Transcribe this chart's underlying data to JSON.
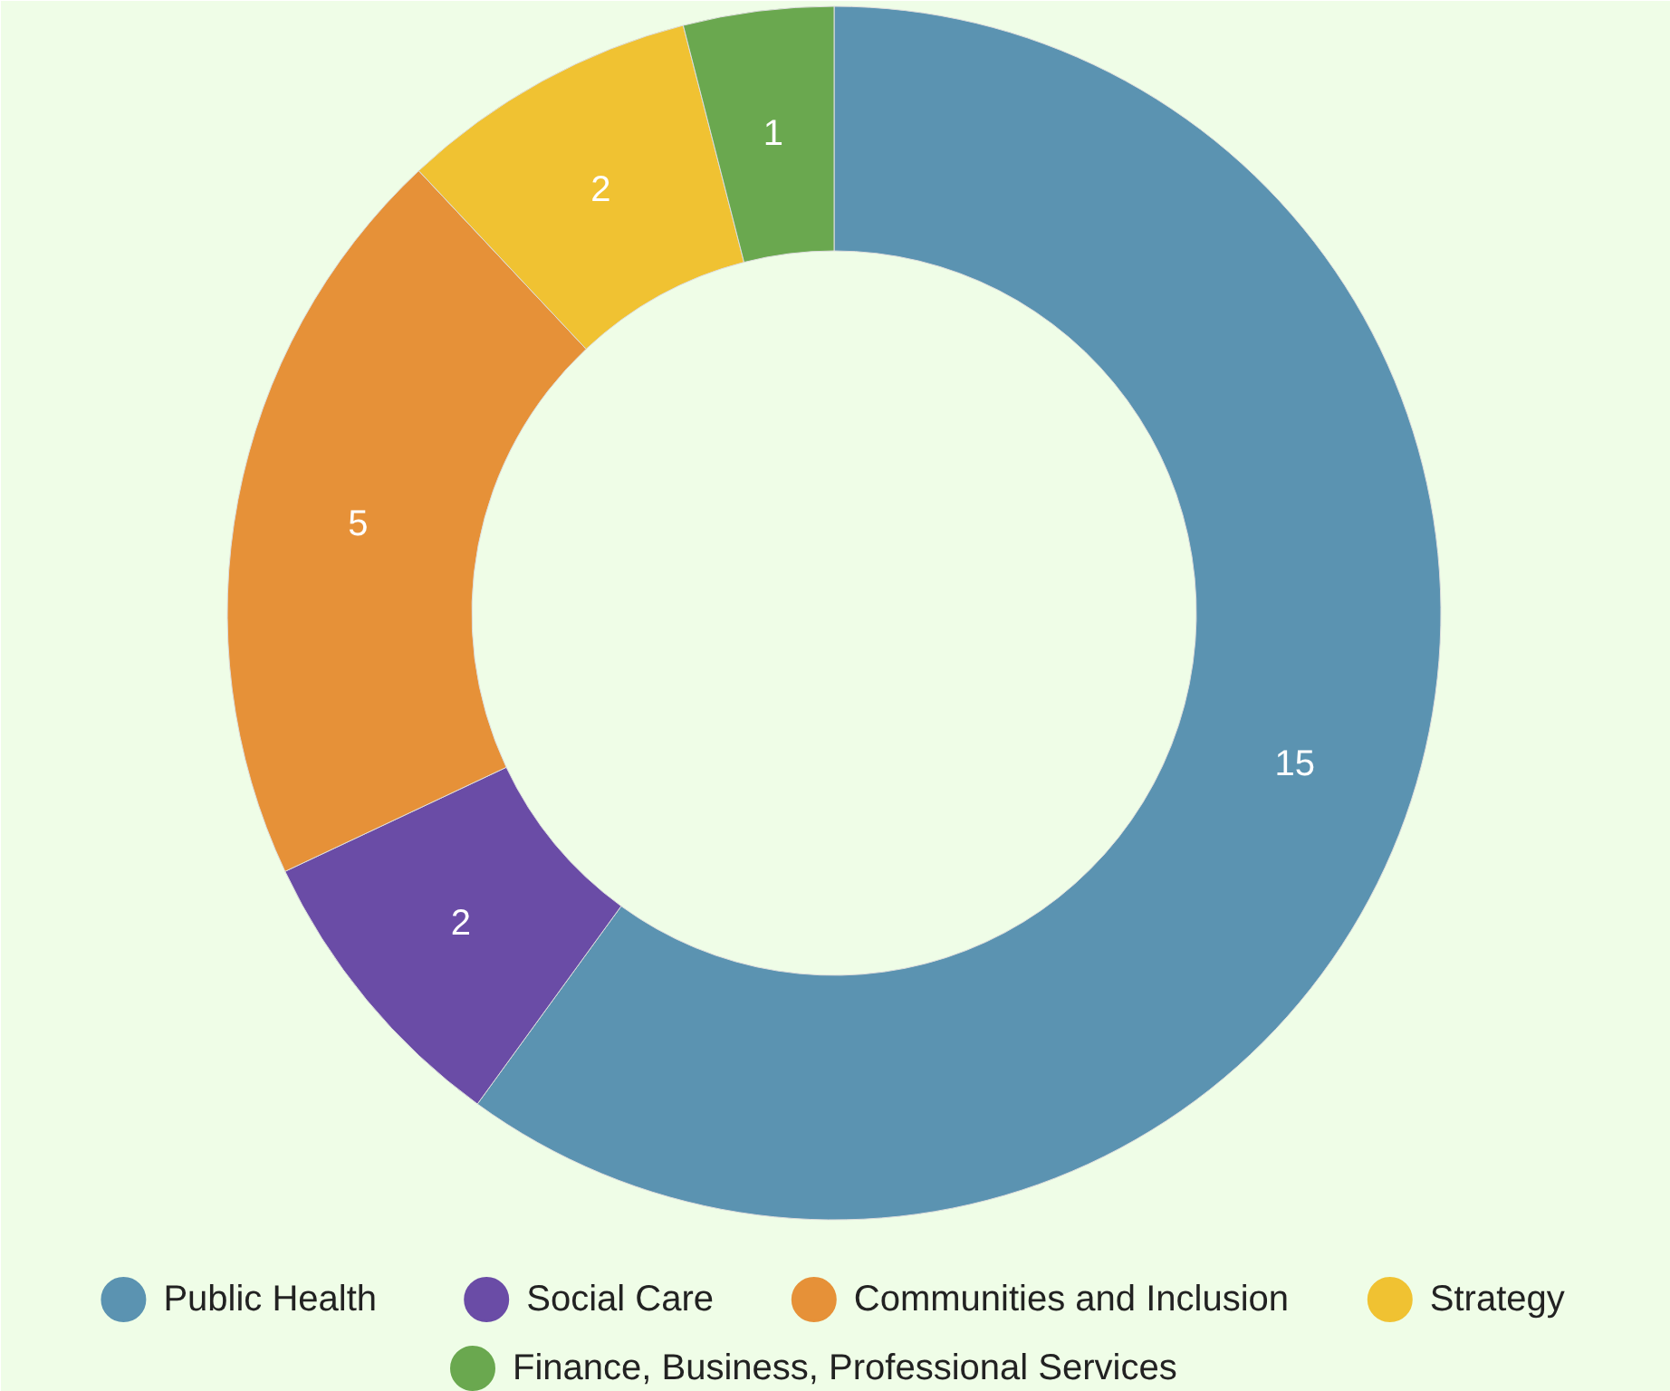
{
  "chart_data": {
    "type": "donut",
    "categories": [
      "Public Health",
      "Social Care",
      "Communities and Inclusion",
      "Strategy",
      "Finance, Business, Professional Services"
    ],
    "values": [
      15,
      2,
      5,
      2,
      1
    ],
    "colors": [
      "#5b93b1",
      "#6a4ca6",
      "#e69138",
      "#f0c232",
      "#6aa84f"
    ],
    "data_labels": true,
    "legend": "bottom"
  }
}
